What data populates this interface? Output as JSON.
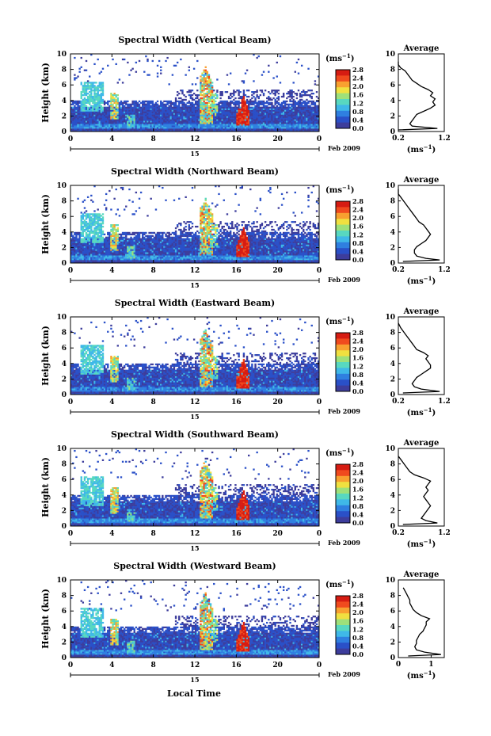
{
  "chart_data": {
    "type": "heatmap",
    "xlabel": "Local Time",
    "date_label": "Feb 2009",
    "day_label": "15",
    "x_ticks": [
      "0",
      "4",
      "8",
      "12",
      "16",
      "20",
      "0"
    ],
    "y_ticks": [
      "0",
      "2",
      "4",
      "6",
      "8",
      "10"
    ],
    "ylabel": "Height (km)",
    "xlim": [
      0,
      24
    ],
    "ylim": [
      0,
      10
    ],
    "colorbar": {
      "unit_prefix": "(ms",
      "unit_exp": "−1",
      "unit_suffix": ")",
      "ticks": [
        "0.0",
        "0.4",
        "0.8",
        "1.2",
        "1.6",
        "2.0",
        "2.4",
        "2.8"
      ],
      "range": [
        0,
        2.8
      ],
      "colors": [
        "#3d3d9c",
        "#2a50c8",
        "#2f7fe0",
        "#3fb8e8",
        "#58d8c0",
        "#9ee07a",
        "#f0e040",
        "#f8a030",
        "#f04a1e",
        "#d61c12"
      ]
    },
    "average_panel": {
      "title": "Average",
      "unit_prefix": "(ms",
      "unit_exp": "−1",
      "unit_suffix": ")",
      "y_ticks": [
        "0",
        "2",
        "4",
        "6",
        "8",
        "10"
      ]
    },
    "panels": [
      {
        "title": "Spectral Width (Vertical Beam)",
        "avg_x_ticks": [
          "0.2",
          "1.2"
        ],
        "avg_xlim": [
          0.2,
          1.2
        ],
        "profile": [
          [
            0.2,
            0.2
          ],
          [
            1.05,
            0.4
          ],
          [
            0.5,
            0.7
          ],
          [
            0.45,
            1.0
          ],
          [
            0.5,
            1.4
          ],
          [
            0.55,
            1.8
          ],
          [
            0.6,
            2.2
          ],
          [
            0.75,
            2.6
          ],
          [
            0.9,
            3.0
          ],
          [
            1.0,
            3.4
          ],
          [
            0.95,
            3.8
          ],
          [
            1.0,
            4.2
          ],
          [
            0.9,
            4.6
          ],
          [
            0.95,
            5.0
          ],
          [
            0.85,
            5.4
          ],
          [
            0.7,
            5.8
          ],
          [
            0.6,
            6.2
          ],
          [
            0.5,
            6.6
          ],
          [
            0.45,
            7.0
          ],
          [
            0.4,
            7.4
          ],
          [
            0.35,
            7.8
          ],
          [
            0.25,
            8.2
          ],
          [
            0.2,
            8.6
          ],
          [
            0.2,
            9.0
          ]
        ]
      },
      {
        "title": "Spectral Width (Northward Beam)",
        "avg_x_ticks": [
          "0.2",
          "1.2"
        ],
        "avg_xlim": [
          0.2,
          1.2
        ],
        "profile": [
          [
            0.3,
            0.2
          ],
          [
            1.1,
            0.4
          ],
          [
            0.8,
            0.6
          ],
          [
            0.6,
            0.9
          ],
          [
            0.55,
            1.3
          ],
          [
            0.55,
            1.7
          ],
          [
            0.6,
            2.1
          ],
          [
            0.7,
            2.5
          ],
          [
            0.8,
            2.9
          ],
          [
            0.85,
            3.3
          ],
          [
            0.9,
            3.7
          ],
          [
            0.85,
            4.1
          ],
          [
            0.8,
            4.5
          ],
          [
            0.75,
            4.9
          ],
          [
            0.65,
            5.3
          ],
          [
            0.6,
            5.7
          ],
          [
            0.55,
            6.1
          ],
          [
            0.5,
            6.5
          ],
          [
            0.45,
            6.9
          ],
          [
            0.4,
            7.3
          ],
          [
            0.35,
            7.7
          ],
          [
            0.3,
            8.1
          ],
          [
            0.25,
            8.5
          ],
          [
            0.2,
            8.9
          ],
          [
            0.2,
            9.5
          ]
        ]
      },
      {
        "title": "Spectral Width (Eastward Beam)",
        "avg_x_ticks": [
          "0.2",
          "1.2"
        ],
        "avg_xlim": [
          0.2,
          1.2
        ],
        "profile": [
          [
            0.3,
            0.2
          ],
          [
            1.1,
            0.4
          ],
          [
            0.7,
            0.7
          ],
          [
            0.55,
            1.0
          ],
          [
            0.5,
            1.4
          ],
          [
            0.55,
            1.8
          ],
          [
            0.6,
            2.2
          ],
          [
            0.7,
            2.6
          ],
          [
            0.8,
            3.0
          ],
          [
            0.9,
            3.4
          ],
          [
            0.9,
            3.8
          ],
          [
            0.85,
            4.2
          ],
          [
            0.8,
            4.6
          ],
          [
            0.85,
            5.0
          ],
          [
            0.75,
            5.4
          ],
          [
            0.6,
            5.8
          ],
          [
            0.55,
            6.2
          ],
          [
            0.5,
            6.6
          ],
          [
            0.45,
            7.0
          ],
          [
            0.4,
            7.4
          ],
          [
            0.35,
            7.8
          ],
          [
            0.3,
            8.2
          ],
          [
            0.25,
            8.6
          ],
          [
            0.2,
            9.2
          ]
        ]
      },
      {
        "title": "Spectral Width (Southward Beam)",
        "avg_x_ticks": [
          "0.2",
          "1.2"
        ],
        "avg_xlim": [
          0.2,
          1.2
        ],
        "profile": [
          [
            0.3,
            0.2
          ],
          [
            1.05,
            0.4
          ],
          [
            0.8,
            0.7
          ],
          [
            0.7,
            1.0
          ],
          [
            0.75,
            1.4
          ],
          [
            0.8,
            1.8
          ],
          [
            0.85,
            2.2
          ],
          [
            0.9,
            2.6
          ],
          [
            0.85,
            3.0
          ],
          [
            0.8,
            3.4
          ],
          [
            0.75,
            3.8
          ],
          [
            0.8,
            4.2
          ],
          [
            0.85,
            4.6
          ],
          [
            0.8,
            5.0
          ],
          [
            0.85,
            5.4
          ],
          [
            0.9,
            5.8
          ],
          [
            0.75,
            6.2
          ],
          [
            0.55,
            6.6
          ],
          [
            0.45,
            7.0
          ],
          [
            0.4,
            7.4
          ],
          [
            0.35,
            7.8
          ],
          [
            0.3,
            8.2
          ],
          [
            0.25,
            8.6
          ],
          [
            0.2,
            9.0
          ]
        ]
      },
      {
        "title": "Spectral Width (Westward Beam)",
        "avg_x_ticks": [
          "0",
          "1"
        ],
        "avg_xlim": [
          0,
          1.4
        ],
        "profile": [
          [
            0.3,
            0.2
          ],
          [
            1.3,
            0.4
          ],
          [
            0.8,
            0.7
          ],
          [
            0.55,
            1.0
          ],
          [
            0.5,
            1.4
          ],
          [
            0.55,
            1.8
          ],
          [
            0.55,
            2.2
          ],
          [
            0.6,
            2.6
          ],
          [
            0.65,
            3.0
          ],
          [
            0.75,
            3.4
          ],
          [
            0.8,
            3.8
          ],
          [
            0.85,
            4.2
          ],
          [
            0.85,
            4.6
          ],
          [
            0.95,
            5.0
          ],
          [
            0.7,
            5.4
          ],
          [
            0.55,
            5.8
          ],
          [
            0.45,
            6.2
          ],
          [
            0.4,
            6.6
          ],
          [
            0.35,
            7.0
          ],
          [
            0.35,
            7.4
          ],
          [
            0.3,
            7.8
          ],
          [
            0.25,
            8.2
          ],
          [
            0.2,
            8.6
          ],
          [
            0.15,
            9.0
          ]
        ]
      }
    ]
  }
}
